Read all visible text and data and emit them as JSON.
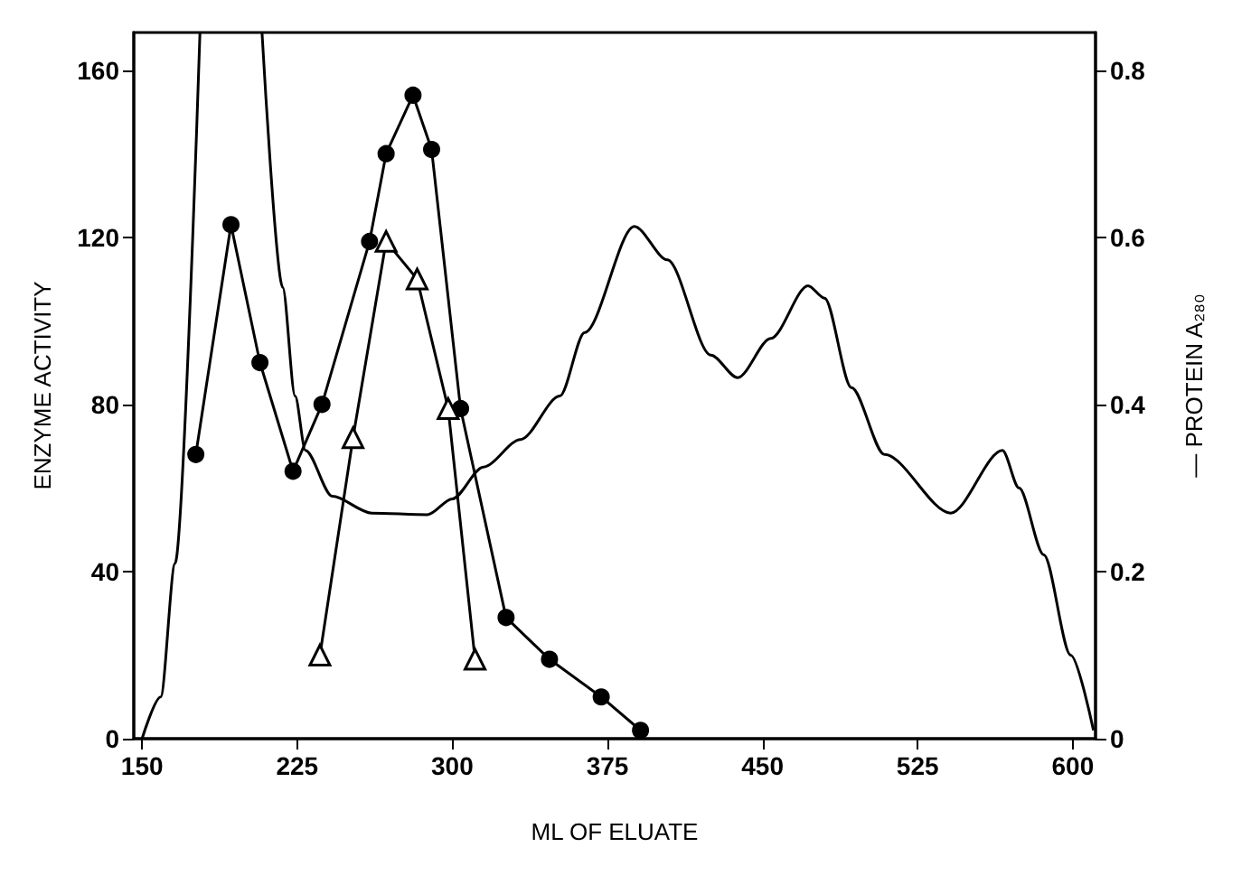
{
  "chart_data": {
    "type": "line",
    "xlabel": "ML OF ELUATE",
    "ylabel": "ENZYME ACTIVITY",
    "y2label": "— PROTEIN A₂₈₀",
    "xlim": [
      146,
      611
    ],
    "xticks": [
      150,
      225,
      300,
      375,
      450,
      525,
      600
    ],
    "ylim": [
      0,
      169
    ],
    "yticks": [
      0,
      40,
      80,
      120,
      160
    ],
    "y2lim": [
      0,
      0.845
    ],
    "y2ticks": [
      0,
      0.2,
      0.4,
      0.6,
      0.8
    ],
    "grid": false,
    "series": [
      {
        "color": "#000000",
        "marker": "circle",
        "x": [
          176,
          193,
          207,
          223,
          237,
          260,
          268,
          281,
          290,
          304,
          326,
          347,
          372,
          391
        ],
        "values": [
          68,
          123,
          90,
          64,
          80,
          119,
          140,
          154,
          141,
          79,
          29,
          19,
          10,
          2
        ]
      },
      {
        "color": "#000000",
        "marker": "triangle",
        "x": [
          236,
          252,
          268,
          283,
          298,
          311
        ],
        "values": [
          20,
          72,
          119,
          110,
          79,
          19
        ]
      },
      {
        "color": "#000000",
        "marker": "none",
        "axis": "y2",
        "x": [
          150,
          159,
          166,
          178,
          192,
          208,
          218,
          224,
          229,
          242,
          261,
          288,
          300,
          315,
          333,
          352,
          364,
          388,
          404,
          425,
          438,
          454,
          472,
          480,
          493,
          509,
          541,
          566,
          574,
          586,
          599,
          610
        ],
        "values": [
          0,
          0.05,
          0.21,
          0.845,
          null,
          0.845,
          0.54,
          0.41,
          0.345,
          0.29,
          0.27,
          0.268,
          0.287,
          0.325,
          0.358,
          0.41,
          0.486,
          0.613,
          0.573,
          0.459,
          0.432,
          0.479,
          0.542,
          0.527,
          0.42,
          0.34,
          0.27,
          0.345,
          0.3,
          0.22,
          0.1,
          0.01
        ]
      }
    ]
  }
}
